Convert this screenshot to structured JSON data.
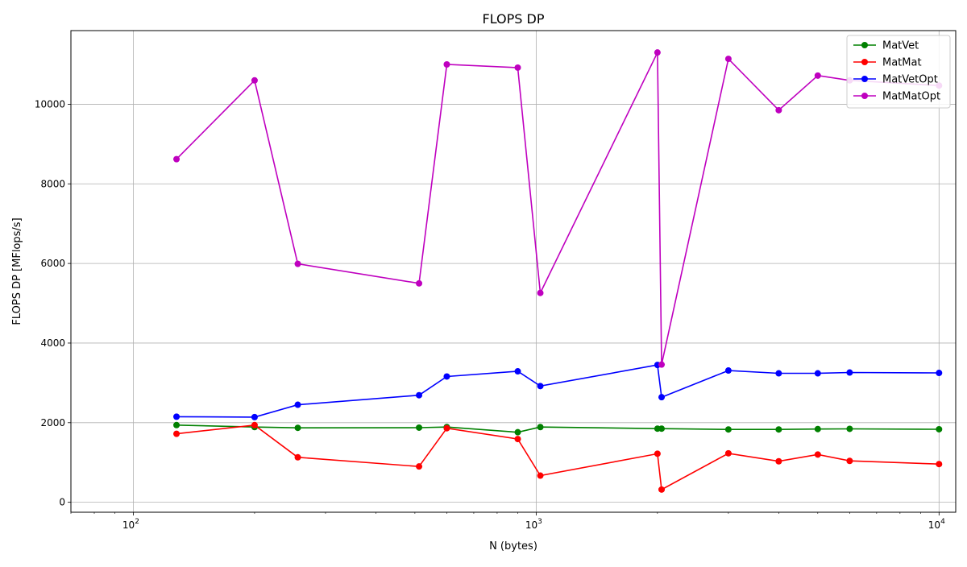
{
  "chart_data": {
    "type": "line",
    "title": "FLOPS DP",
    "xlabel": "N (bytes)",
    "ylabel": "FLOPS DP [MFlops/s]",
    "x_scale": "log",
    "xlim": [
      70,
      11000
    ],
    "ylim": [
      -250,
      11850
    ],
    "grid": true,
    "legend_position": "top-right",
    "x_ticks": [
      100,
      1000,
      10000
    ],
    "x_tick_labels": [
      "10",
      "10",
      "10"
    ],
    "x_tick_exponents": [
      "2",
      "3",
      "4"
    ],
    "y_ticks": [
      0,
      2000,
      4000,
      6000,
      8000,
      10000
    ],
    "y_tick_labels": [
      "0",
      "2000",
      "4000",
      "6000",
      "8000",
      "10000"
    ],
    "x": [
      128,
      200,
      256,
      512,
      600,
      900,
      1024,
      2000,
      2048,
      3000,
      4000,
      5000,
      6000,
      10000
    ],
    "series": [
      {
        "name": "MatVet",
        "color": "#008000",
        "values": [
          1940,
          1890,
          1870,
          1875,
          1890,
          1760,
          1890,
          1850,
          1850,
          1830,
          1830,
          1840,
          1845,
          1835
        ]
      },
      {
        "name": "MatMat",
        "color": "#ff0000",
        "values": [
          1720,
          1940,
          1130,
          900,
          1860,
          1590,
          670,
          1220,
          320,
          1230,
          1030,
          1200,
          1040,
          960
        ]
      },
      {
        "name": "MatVetOpt",
        "color": "#0000ff",
        "values": [
          2150,
          2140,
          2450,
          2690,
          3160,
          3290,
          2920,
          3450,
          2640,
          3310,
          3240,
          3240,
          3260,
          3250
        ]
      },
      {
        "name": "MatMatOpt",
        "color": "#bf00bf",
        "values": [
          8620,
          10600,
          5990,
          5500,
          11000,
          10920,
          5260,
          11300,
          3460,
          11140,
          9850,
          10720,
          10600,
          10470
        ]
      }
    ]
  }
}
